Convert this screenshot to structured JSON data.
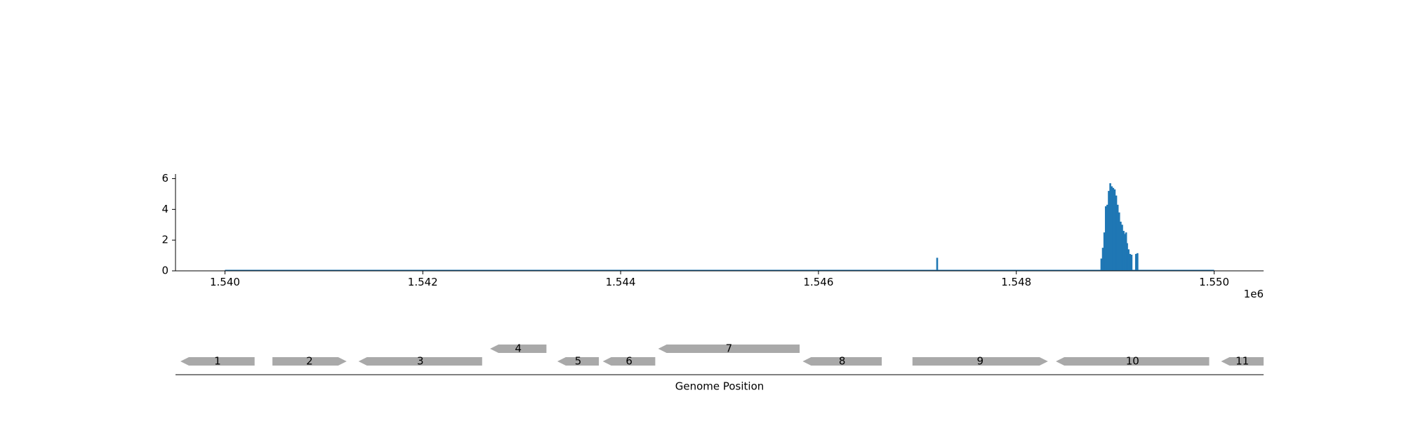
{
  "chart_data": [
    {
      "type": "bar",
      "title": "",
      "xlabel": "",
      "ylabel": "",
      "xlim": [
        1539500,
        1550500
      ],
      "ylim": [
        0,
        6.3
      ],
      "x_offset_label": "1e6",
      "x_ticks": [
        1540000,
        1542000,
        1544000,
        1546000,
        1548000,
        1550000
      ],
      "x_tick_labels": [
        "1.540",
        "1.542",
        "1.544",
        "1.546",
        "1.548",
        "1.550"
      ],
      "y_ticks": [
        0,
        2,
        4,
        6
      ],
      "y_tick_labels": [
        "0",
        "2",
        "4",
        "6"
      ],
      "color": "#1f77b4",
      "baseline_range": [
        1540000,
        1550000
      ],
      "points": [
        {
          "x": 1547200,
          "y": 0.85
        },
        {
          "x": 1548860,
          "y": 0.8
        },
        {
          "x": 1548875,
          "y": 1.5
        },
        {
          "x": 1548890,
          "y": 2.5
        },
        {
          "x": 1548905,
          "y": 4.2
        },
        {
          "x": 1548920,
          "y": 4.3
        },
        {
          "x": 1548935,
          "y": 5.2
        },
        {
          "x": 1548950,
          "y": 5.7
        },
        {
          "x": 1548965,
          "y": 5.5
        },
        {
          "x": 1548980,
          "y": 5.4
        },
        {
          "x": 1548995,
          "y": 5.3
        },
        {
          "x": 1549010,
          "y": 4.9
        },
        {
          "x": 1549025,
          "y": 4.3
        },
        {
          "x": 1549040,
          "y": 3.8
        },
        {
          "x": 1549055,
          "y": 3.2
        },
        {
          "x": 1549070,
          "y": 3.0
        },
        {
          "x": 1549085,
          "y": 2.6
        },
        {
          "x": 1549100,
          "y": 2.4
        },
        {
          "x": 1549110,
          "y": 2.5
        },
        {
          "x": 1549120,
          "y": 1.8
        },
        {
          "x": 1549135,
          "y": 1.4
        },
        {
          "x": 1549150,
          "y": 1.1
        },
        {
          "x": 1549165,
          "y": 1.05
        },
        {
          "x": 1549210,
          "y": 1.1
        },
        {
          "x": 1549225,
          "y": 1.15
        }
      ]
    },
    {
      "type": "gene-track",
      "xlabel": "Genome Position",
      "color": "#a9a9a9",
      "genes": [
        {
          "label": "1",
          "start": 1539550,
          "end": 1540300,
          "strand": "-",
          "row": 0
        },
        {
          "label": "2",
          "start": 1540480,
          "end": 1541230,
          "strand": "+",
          "row": 0
        },
        {
          "label": "3",
          "start": 1541350,
          "end": 1542600,
          "strand": "-",
          "row": 0
        },
        {
          "label": "4",
          "start": 1542680,
          "end": 1543250,
          "strand": "-",
          "row": 1
        },
        {
          "label": "5",
          "start": 1543360,
          "end": 1543780,
          "strand": "-",
          "row": 0
        },
        {
          "label": "6",
          "start": 1543820,
          "end": 1544350,
          "strand": "-",
          "row": 0
        },
        {
          "label": "7",
          "start": 1544380,
          "end": 1545810,
          "strand": "-",
          "row": 1
        },
        {
          "label": "8",
          "start": 1545840,
          "end": 1546640,
          "strand": "-",
          "row": 0
        },
        {
          "label": "9",
          "start": 1546950,
          "end": 1548320,
          "strand": "+",
          "row": 0
        },
        {
          "label": "10",
          "start": 1548400,
          "end": 1549950,
          "strand": "-",
          "row": 0
        },
        {
          "label": "11",
          "start": 1550070,
          "end": 1550500,
          "strand": "-",
          "row": 0
        }
      ]
    }
  ]
}
